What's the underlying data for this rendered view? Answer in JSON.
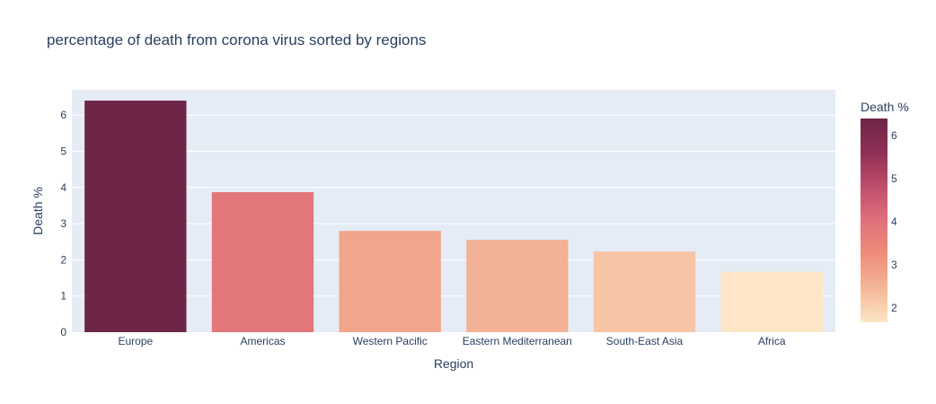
{
  "chart_data": {
    "type": "bar",
    "title": "percentage of death from corona virus sorted by regions",
    "xlabel": "Region",
    "ylabel": "Death %",
    "categories": [
      "Europe",
      "Americas",
      "Western Pacific",
      "Eastern Mediterranean",
      "South-East Asia",
      "Africa"
    ],
    "values": [
      6.4,
      3.87,
      2.8,
      2.55,
      2.23,
      1.67
    ],
    "ylim": [
      0,
      6.7
    ],
    "yticks": [
      "0",
      "1",
      "2",
      "3",
      "4",
      "5",
      "6"
    ],
    "grid": true,
    "colorbar": {
      "title": "Death %",
      "range": [
        1.67,
        6.4
      ],
      "ticks": [
        "2",
        "3",
        "4",
        "5",
        "6"
      ],
      "colorscale": [
        "#fde6c5",
        "#f4b798",
        "#ef8d7a",
        "#e0707a",
        "#bf4e6b",
        "#8f2f56",
        "#6e2548"
      ]
    },
    "plot_bg": "#e5ecf6"
  }
}
